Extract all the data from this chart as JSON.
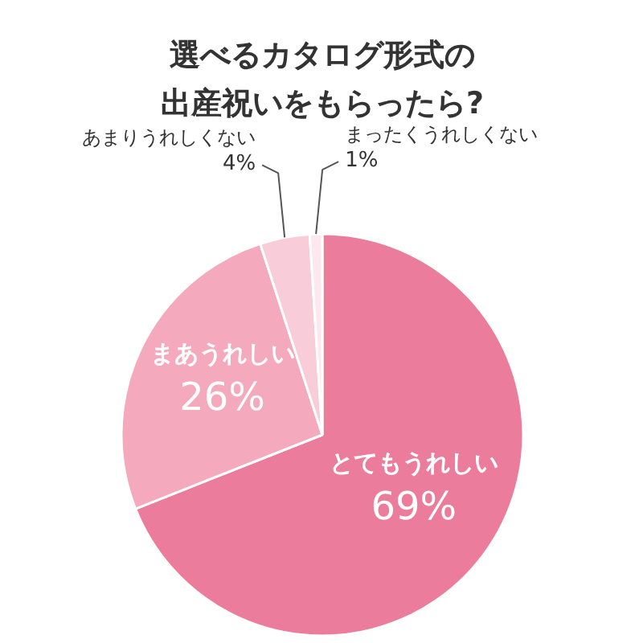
{
  "chart_data": {
    "type": "pie",
    "title": "選べるカタログ形式の出産祝いをもらったら?",
    "categories": [
      "とてもうれしい",
      "まあうれしい",
      "あまりうれしくない",
      "まったくうれしくない"
    ],
    "values": [
      69,
      26,
      4,
      1
    ],
    "value_labels": [
      "69%",
      "26%",
      "4%",
      "1%"
    ],
    "colors": [
      "#ec7c9c",
      "#f4a9bd",
      "#f8ccd8",
      "#fce8ee"
    ]
  }
}
